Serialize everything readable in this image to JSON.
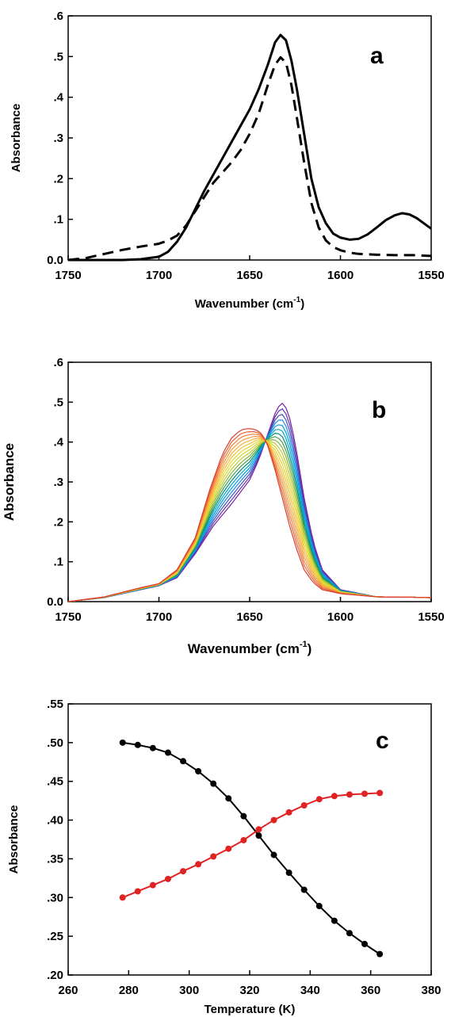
{
  "chart_data": [
    {
      "type": "line",
      "panel_label": "a",
      "xlabel": "Wavenumber (cm",
      "xlabel_sup": "-1",
      "xlabel_tail": ")",
      "ylabel": "Absorbance",
      "xlim": [
        1750,
        1550
      ],
      "ylim": [
        0,
        0.6
      ],
      "x_ticks": [
        1750,
        1700,
        1650,
        1600,
        1550
      ],
      "x_tick_labels": [
        "1750",
        "1700",
        "1650",
        "1600",
        "1550"
      ],
      "y_ticks": [
        0,
        0.1,
        0.2,
        0.3,
        0.4,
        0.5,
        0.6
      ],
      "y_tick_labels": [
        "0.0",
        ".1",
        ".2",
        ".3",
        ".4",
        ".5",
        ".6"
      ],
      "grid": false,
      "series": [
        {
          "style": "solid",
          "color": "#000000",
          "points": [
            [
              1750,
              0.0
            ],
            [
              1740,
              0.0
            ],
            [
              1730,
              0.0
            ],
            [
              1720,
              0.0
            ],
            [
              1710,
              0.002
            ],
            [
              1700,
              0.008
            ],
            [
              1695,
              0.02
            ],
            [
              1690,
              0.045
            ],
            [
              1685,
              0.08
            ],
            [
              1680,
              0.125
            ],
            [
              1675,
              0.17
            ],
            [
              1670,
              0.21
            ],
            [
              1665,
              0.25
            ],
            [
              1660,
              0.29
            ],
            [
              1655,
              0.33
            ],
            [
              1650,
              0.37
            ],
            [
              1645,
              0.42
            ],
            [
              1640,
              0.48
            ],
            [
              1636,
              0.535
            ],
            [
              1633,
              0.553
            ],
            [
              1630,
              0.54
            ],
            [
              1627,
              0.49
            ],
            [
              1624,
              0.42
            ],
            [
              1620,
              0.31
            ],
            [
              1616,
              0.2
            ],
            [
              1612,
              0.13
            ],
            [
              1608,
              0.09
            ],
            [
              1604,
              0.065
            ],
            [
              1600,
              0.055
            ],
            [
              1595,
              0.05
            ],
            [
              1590,
              0.052
            ],
            [
              1585,
              0.063
            ],
            [
              1580,
              0.08
            ],
            [
              1575,
              0.098
            ],
            [
              1570,
              0.11
            ],
            [
              1566,
              0.115
            ],
            [
              1562,
              0.112
            ],
            [
              1558,
              0.103
            ],
            [
              1554,
              0.09
            ],
            [
              1550,
              0.077
            ]
          ]
        },
        {
          "style": "dashed",
          "color": "#000000",
          "points": [
            [
              1750,
              0.0
            ],
            [
              1740,
              0.005
            ],
            [
              1730,
              0.015
            ],
            [
              1720,
              0.025
            ],
            [
              1710,
              0.033
            ],
            [
              1700,
              0.04
            ],
            [
              1695,
              0.048
            ],
            [
              1690,
              0.06
            ],
            [
              1685,
              0.085
            ],
            [
              1680,
              0.12
            ],
            [
              1675,
              0.155
            ],
            [
              1670,
              0.19
            ],
            [
              1665,
              0.215
            ],
            [
              1660,
              0.24
            ],
            [
              1655,
              0.27
            ],
            [
              1650,
              0.31
            ],
            [
              1645,
              0.36
            ],
            [
              1640,
              0.43
            ],
            [
              1636,
              0.48
            ],
            [
              1633,
              0.498
            ],
            [
              1630,
              0.485
            ],
            [
              1627,
              0.43
            ],
            [
              1624,
              0.35
            ],
            [
              1620,
              0.24
            ],
            [
              1616,
              0.14
            ],
            [
              1612,
              0.08
            ],
            [
              1608,
              0.048
            ],
            [
              1604,
              0.032
            ],
            [
              1600,
              0.024
            ],
            [
              1595,
              0.018
            ],
            [
              1590,
              0.015
            ],
            [
              1580,
              0.013
            ],
            [
              1570,
              0.012
            ],
            [
              1560,
              0.012
            ],
            [
              1550,
              0.01
            ]
          ]
        }
      ]
    },
    {
      "type": "line",
      "panel_label": "b",
      "xlabel": "Wavenumber (cm",
      "xlabel_sup": "-1",
      "xlabel_tail": ")",
      "ylabel": "Absorbance",
      "xlim": [
        1750,
        1550
      ],
      "ylim": [
        0,
        0.6
      ],
      "x_ticks": [
        1750,
        1700,
        1650,
        1600,
        1550
      ],
      "x_tick_labels": [
        "1750",
        "1700",
        "1650",
        "1600",
        "1550"
      ],
      "y_ticks": [
        0,
        0.1,
        0.2,
        0.3,
        0.4,
        0.5,
        0.6
      ],
      "y_tick_labels": [
        "0.0",
        ".1",
        ".2",
        ".3",
        ".4",
        ".5",
        ".6"
      ],
      "grid": false,
      "spectra_count": 18,
      "spectra_colors": [
        "#7a1fa2",
        "#5e35b1",
        "#3f51b5",
        "#1e88e5",
        "#039be5",
        "#00acc1",
        "#00897b",
        "#43a047",
        "#7cb342",
        "#c0ca33",
        "#d4d62e",
        "#e6d432",
        "#f1c232",
        "#f6b03a",
        "#f39c3c",
        "#ef7f3b",
        "#e8613a",
        "#dd3b2a"
      ],
      "first_spectrum": [
        [
          1750,
          0.0
        ],
        [
          1730,
          0.01
        ],
        [
          1710,
          0.03
        ],
        [
          1700,
          0.04
        ],
        [
          1690,
          0.06
        ],
        [
          1680,
          0.12
        ],
        [
          1670,
          0.19
        ],
        [
          1660,
          0.245
        ],
        [
          1650,
          0.305
        ],
        [
          1645,
          0.355
        ],
        [
          1640,
          0.42
        ],
        [
          1635,
          0.485
        ],
        [
          1632,
          0.497
        ],
        [
          1629,
          0.48
        ],
        [
          1625,
          0.4
        ],
        [
          1620,
          0.26
        ],
        [
          1615,
          0.15
        ],
        [
          1610,
          0.08
        ],
        [
          1600,
          0.03
        ],
        [
          1580,
          0.012
        ],
        [
          1560,
          0.011
        ],
        [
          1550,
          0.01
        ]
      ],
      "last_spectrum": [
        [
          1750,
          0.0
        ],
        [
          1730,
          0.012
        ],
        [
          1710,
          0.035
        ],
        [
          1700,
          0.045
        ],
        [
          1690,
          0.08
        ],
        [
          1680,
          0.16
        ],
        [
          1672,
          0.28
        ],
        [
          1665,
          0.37
        ],
        [
          1660,
          0.41
        ],
        [
          1655,
          0.43
        ],
        [
          1651,
          0.434
        ],
        [
          1647,
          0.432
        ],
        [
          1643,
          0.42
        ],
        [
          1640,
          0.39
        ],
        [
          1636,
          0.33
        ],
        [
          1632,
          0.26
        ],
        [
          1628,
          0.19
        ],
        [
          1624,
          0.13
        ],
        [
          1620,
          0.08
        ],
        [
          1615,
          0.048
        ],
        [
          1610,
          0.03
        ],
        [
          1600,
          0.02
        ],
        [
          1580,
          0.012
        ],
        [
          1560,
          0.011
        ],
        [
          1550,
          0.01
        ]
      ]
    },
    {
      "type": "line",
      "panel_label": "c",
      "xlabel": "Temperature (K)",
      "ylabel": "Absorbance",
      "xlim": [
        260,
        380
      ],
      "ylim": [
        0.2,
        0.55
      ],
      "x_ticks": [
        260,
        280,
        300,
        320,
        340,
        360,
        380
      ],
      "x_tick_labels": [
        "260",
        "280",
        "300",
        "320",
        "340",
        "360",
        "380"
      ],
      "y_ticks": [
        0.2,
        0.25,
        0.3,
        0.35,
        0.4,
        0.45,
        0.5,
        0.55
      ],
      "y_tick_labels": [
        ".20",
        ".25",
        ".30",
        ".35",
        ".40",
        ".45",
        ".50",
        ".55"
      ],
      "grid": false,
      "series": [
        {
          "color": "#000000",
          "markers": true,
          "x": [
            278,
            283,
            288,
            293,
            298,
            303,
            308,
            313,
            318,
            323,
            328,
            333,
            338,
            343,
            348,
            353,
            358,
            363
          ],
          "y": [
            0.5,
            0.497,
            0.493,
            0.487,
            0.476,
            0.463,
            0.447,
            0.428,
            0.405,
            0.38,
            0.355,
            0.332,
            0.31,
            0.289,
            0.27,
            0.254,
            0.24,
            0.227
          ]
        },
        {
          "color": "#e02222",
          "markers": true,
          "x": [
            278,
            283,
            288,
            293,
            298,
            303,
            308,
            313,
            318,
            323,
            328,
            333,
            338,
            343,
            348,
            353,
            358,
            363
          ],
          "y": [
            0.3,
            0.308,
            0.316,
            0.324,
            0.334,
            0.343,
            0.353,
            0.363,
            0.374,
            0.388,
            0.4,
            0.41,
            0.419,
            0.427,
            0.431,
            0.433,
            0.434,
            0.435
          ]
        }
      ]
    }
  ]
}
